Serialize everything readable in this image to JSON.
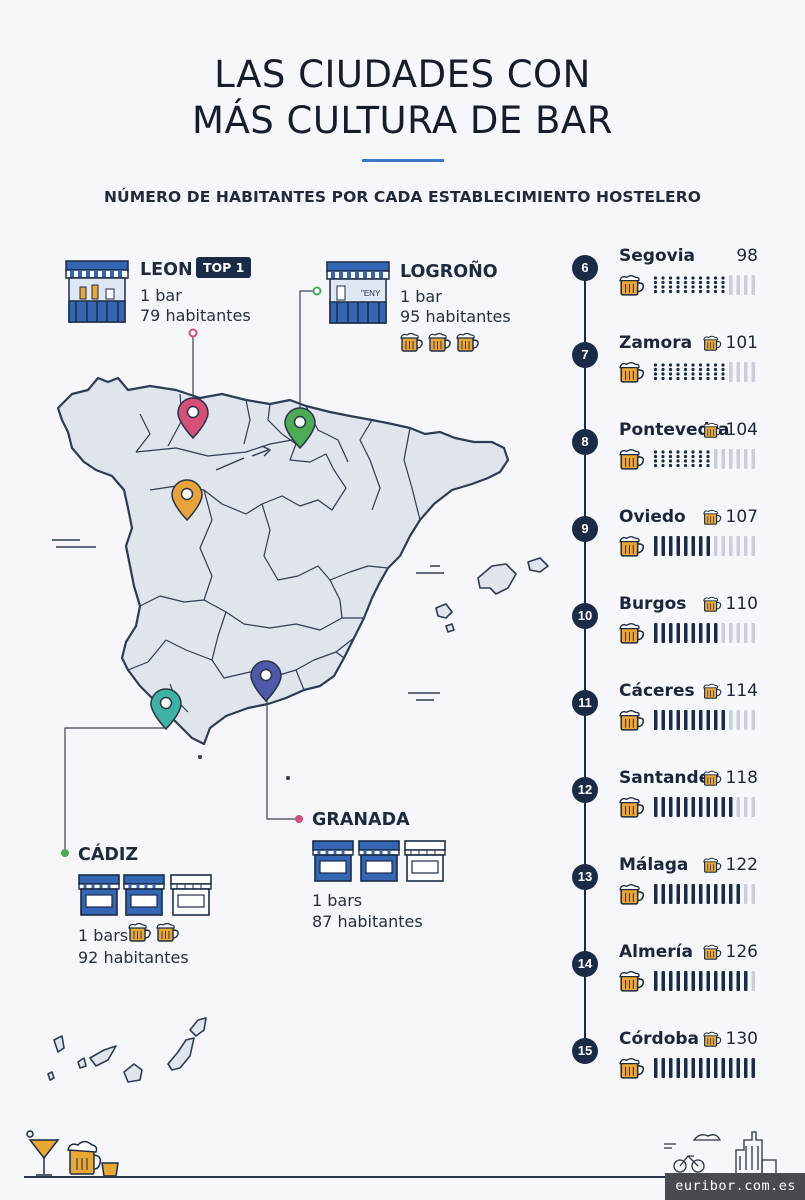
{
  "title": {
    "line1": "LAS CIUDADES CON",
    "line2": "MÁS CULTURA DE BAR"
  },
  "subtitle": "NÚMERO DE HABITANTES POR CADA ESTABLECIMIENTO HOSTELERO",
  "colors": {
    "navy": "#1c2b45",
    "accent_blue": "#3e79c3",
    "bar_blue": "#3566b3",
    "leon_pin": "#d54f78",
    "logrono_pin": "#4daa55",
    "orange_pin": "#e9a33b",
    "cadiz_pin": "#3fb3a3",
    "granada_pin": "#5058a8",
    "beer": "#e9a834"
  },
  "map_cities": [
    {
      "name": "LEON",
      "badge": "TOP 1",
      "line1": "1 bar",
      "line2": "79 habitantes"
    },
    {
      "name": "LOGROÑO",
      "line1": "1 bar",
      "line2": "95 habitantes",
      "shop_sign": "\"ENY"
    },
    {
      "name": "CÁDIZ",
      "line1": "1 bars",
      "line2": "92 habitantes"
    },
    {
      "name": "GRANADA",
      "line1": "1 bars",
      "line2": "87 habitantes"
    }
  ],
  "ranking": [
    {
      "rank": "6",
      "city": "Segovia",
      "value": "98"
    },
    {
      "rank": "7",
      "city": "Zamora",
      "value": "101"
    },
    {
      "rank": "8",
      "city": "Pontevedra",
      "value": "104"
    },
    {
      "rank": "9",
      "city": "Oviedo",
      "value": "107"
    },
    {
      "rank": "10",
      "city": "Burgos",
      "value": "110"
    },
    {
      "rank": "11",
      "city": "Cáceres",
      "value": "114"
    },
    {
      "rank": "12",
      "city": "Santander",
      "value": "118"
    },
    {
      "rank": "13",
      "city": "Málaga",
      "value": "122"
    },
    {
      "rank": "14",
      "city": "Almería",
      "value": "126"
    },
    {
      "rank": "15",
      "city": "Córdoba",
      "value": "130"
    }
  ],
  "footer": {
    "watermark": "euribor.com.es"
  }
}
